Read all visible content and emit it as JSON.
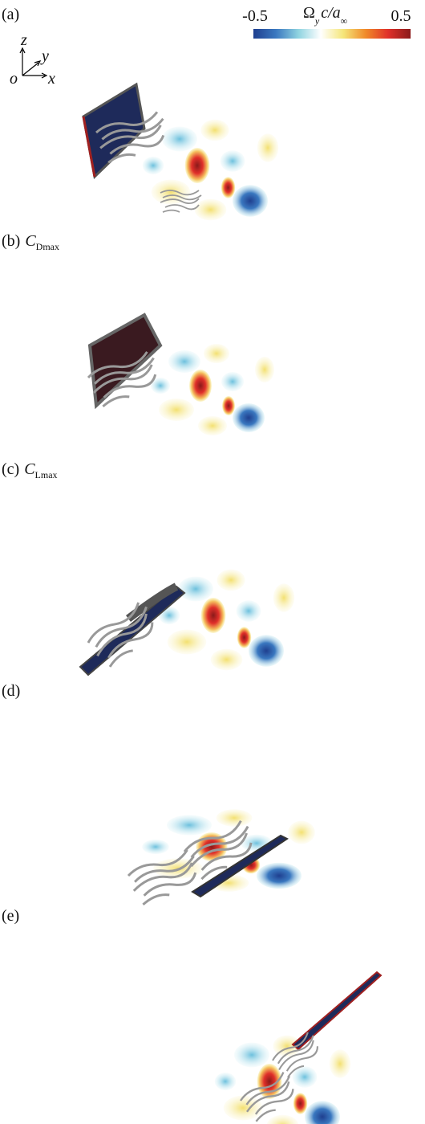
{
  "colorbar": {
    "min_label": -0.5,
    "max_label": 0.5,
    "symbol": "Ω",
    "symbol_sub": "y",
    "ratio": "c/a",
    "ratio_sub": "∞",
    "colors": [
      "#1f3f8f",
      "#3a78c0",
      "#8fd3e0",
      "#ffffff",
      "#f5e67a",
      "#f08a2a",
      "#e0302a",
      "#8a1a1a"
    ]
  },
  "axes_triad": {
    "z": "z",
    "y": "y",
    "o": "o",
    "x": "x"
  },
  "panels": [
    {
      "label": "(a)"
    },
    {
      "label": "(b)",
      "var": "C",
      "sub": "Dmax"
    },
    {
      "label": "(c)",
      "var": "C",
      "sub": "Lmax"
    },
    {
      "label": "(d)"
    },
    {
      "label": "(e)"
    }
  ]
}
